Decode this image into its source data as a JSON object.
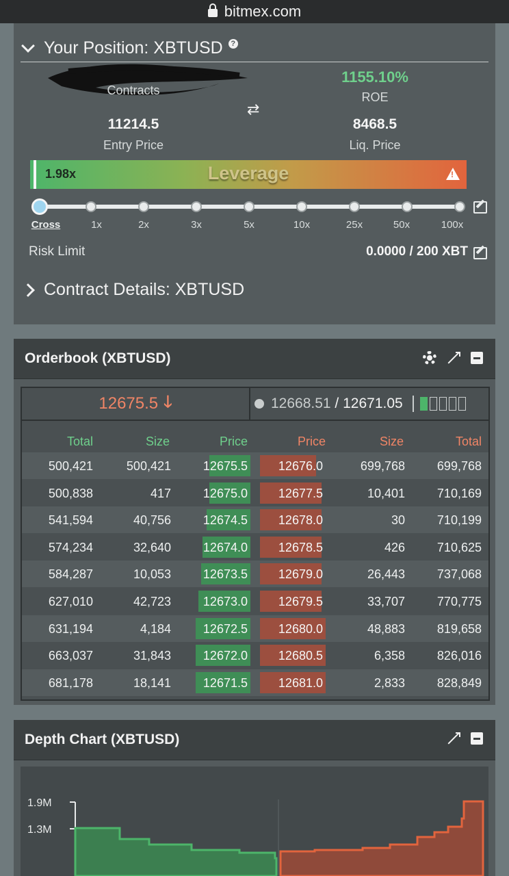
{
  "browser": {
    "url": "bitmex.com"
  },
  "position": {
    "title": "Your Position: XBTUSD",
    "contracts_label": "Contracts",
    "roe_value": "1155.10%",
    "roe_label": "ROE",
    "entry_price": "11214.5",
    "entry_label": "Entry Price",
    "liq_price": "8468.5",
    "liq_label": "Liq. Price",
    "leverage_value": "1.98x",
    "leverage_title": "Leverage",
    "leverage_level": 0.0198,
    "leverage_ticks": [
      "Cross",
      "1x",
      "2x",
      "3x",
      "5x",
      "10x",
      "25x",
      "50x",
      "100x"
    ],
    "risk_limit_label": "Risk Limit",
    "risk_limit_value": "0.0000 / 200 XBT"
  },
  "contract_details": {
    "title": "Contract Details: XBTUSD"
  },
  "orderbook": {
    "title": "Orderbook (XBTUSD)",
    "last_price": "12675.5",
    "index_price": "12668.51",
    "mark_price": "12671.05",
    "columns": [
      "Total",
      "Size",
      "Price",
      "Price",
      "Size",
      "Total"
    ],
    "rows": [
      {
        "bid_total": "500,421",
        "bid_size": "500,421",
        "bid_price": "12675.5",
        "ask_price": "12676.0",
        "ask_size": "699,768",
        "ask_total": "699,768"
      },
      {
        "bid_total": "500,838",
        "bid_size": "417",
        "bid_price": "12675.0",
        "ask_price": "12677.5",
        "ask_size": "10,401",
        "ask_total": "710,169"
      },
      {
        "bid_total": "541,594",
        "bid_size": "40,756",
        "bid_price": "12674.5",
        "ask_price": "12678.0",
        "ask_size": "30",
        "ask_total": "710,199"
      },
      {
        "bid_total": "574,234",
        "bid_size": "32,640",
        "bid_price": "12674.0",
        "ask_price": "12678.5",
        "ask_size": "426",
        "ask_total": "710,625"
      },
      {
        "bid_total": "584,287",
        "bid_size": "10,053",
        "bid_price": "12673.5",
        "ask_price": "12679.0",
        "ask_size": "26,443",
        "ask_total": "737,068"
      },
      {
        "bid_total": "627,010",
        "bid_size": "42,723",
        "bid_price": "12673.0",
        "ask_price": "12679.5",
        "ask_size": "33,707",
        "ask_total": "770,775"
      },
      {
        "bid_total": "631,194",
        "bid_size": "4,184",
        "bid_price": "12672.5",
        "ask_price": "12680.0",
        "ask_size": "48,883",
        "ask_total": "819,658"
      },
      {
        "bid_total": "663,037",
        "bid_size": "31,843",
        "bid_price": "12672.0",
        "ask_price": "12680.5",
        "ask_size": "6,358",
        "ask_total": "826,016"
      },
      {
        "bid_total": "681,178",
        "bid_size": "18,141",
        "bid_price": "12671.5",
        "ask_price": "12681.0",
        "ask_size": "2,833",
        "ask_total": "828,849"
      }
    ]
  },
  "depth_chart": {
    "title": "Depth Chart (XBTUSD)",
    "y_ticks": [
      "1.9M",
      "1.3M"
    ]
  },
  "colors": {
    "bid": "#4db56a",
    "ask": "#e2643d",
    "panel": "#545b5d",
    "header": "#3c4142"
  }
}
